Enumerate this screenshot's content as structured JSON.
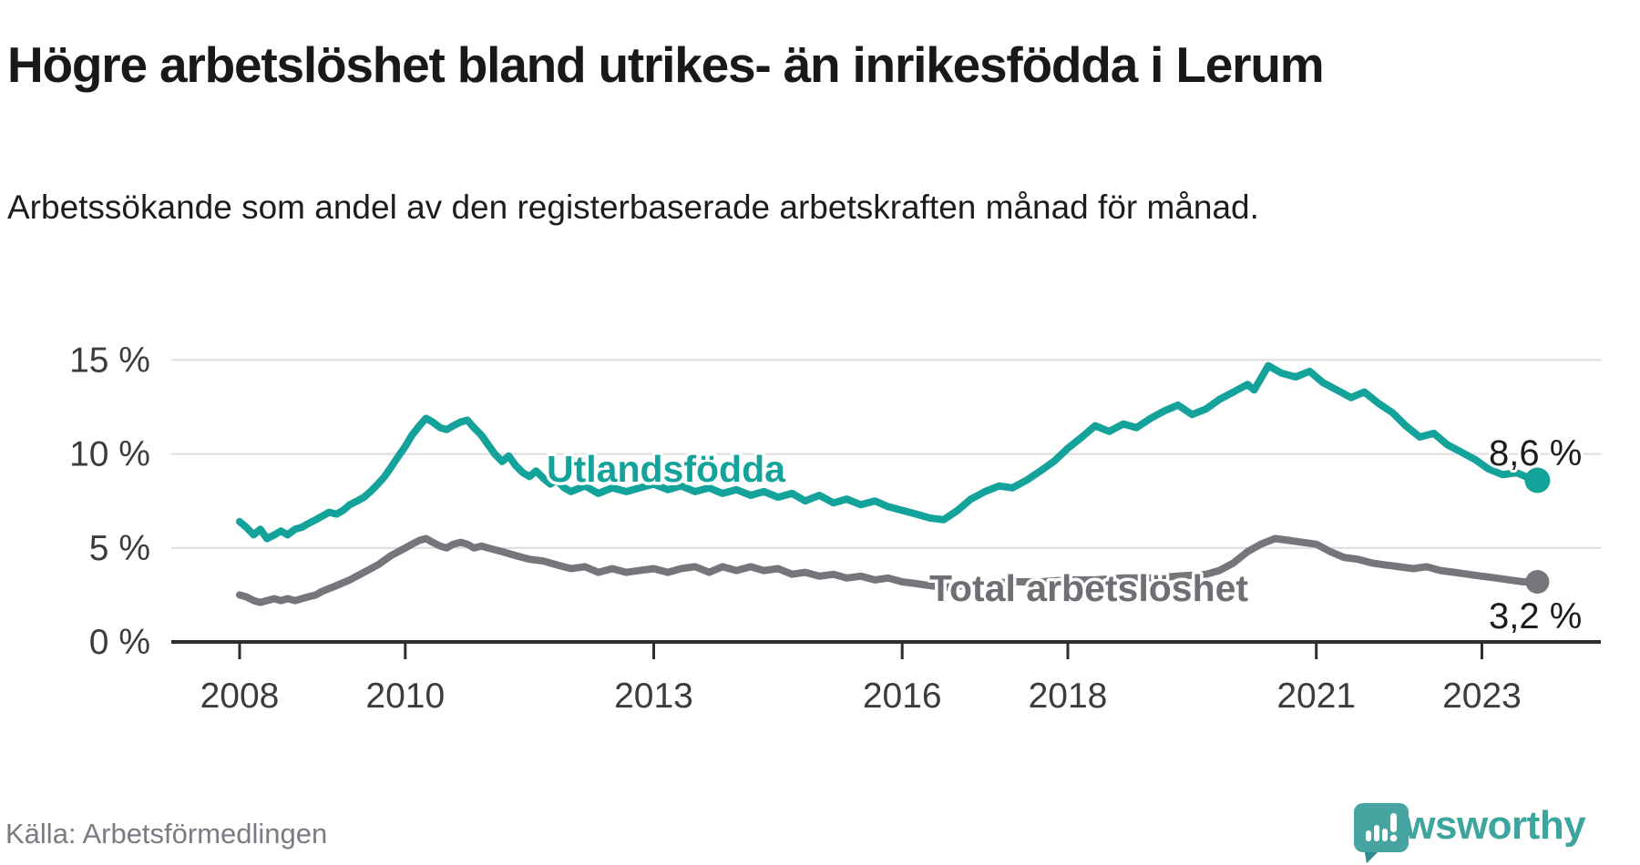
{
  "header": {
    "title": "Högre arbetslöshet bland utrikes- än inrikesfödda i Lerum",
    "subtitle": "Arbetssökande som andel av den registerbaserade arbetskraften månad för månad."
  },
  "footer": {
    "source": "Källa: Arbetsförmedlingen",
    "brand": "Newsworthy",
    "brand_icon": "speech-bubble-bar-chart-exclamation-icon",
    "brand_color": "#3ba59e"
  },
  "chart_data": {
    "type": "line",
    "title": "Högre arbetslöshet bland utrikes- än inrikesfödda i Lerum",
    "subtitle": "Arbetssökande som andel av den registerbaserade arbetskraften månad för månad.",
    "unit": "%",
    "grid": true,
    "x_axis": {
      "ticks": [
        2008,
        2010,
        2013,
        2016,
        2018,
        2021,
        2023
      ],
      "tick_labels": [
        "2008",
        "2010",
        "2013",
        "2016",
        "2018",
        "2021",
        "2023"
      ],
      "range": [
        2007.8,
        2024.45
      ]
    },
    "y_axis": {
      "ticks": [
        0,
        5,
        10,
        15
      ],
      "tick_labels": [
        "0 %",
        "5 %",
        "10 %",
        "15 %"
      ],
      "range": [
        0,
        15.6
      ]
    },
    "series": [
      {
        "name": "Utlandsfödda",
        "color": "#13a39a",
        "end_label": "8,6 %",
        "end_value": 8.6,
        "points": [
          [
            2008.0,
            6.4
          ],
          [
            2008.08,
            6.1
          ],
          [
            2008.17,
            5.7
          ],
          [
            2008.25,
            6.0
          ],
          [
            2008.33,
            5.5
          ],
          [
            2008.42,
            5.7
          ],
          [
            2008.5,
            5.9
          ],
          [
            2008.58,
            5.7
          ],
          [
            2008.67,
            6.0
          ],
          [
            2008.75,
            6.1
          ],
          [
            2008.83,
            6.3
          ],
          [
            2008.92,
            6.5
          ],
          [
            2009.0,
            6.7
          ],
          [
            2009.08,
            6.9
          ],
          [
            2009.17,
            6.8
          ],
          [
            2009.25,
            7.0
          ],
          [
            2009.33,
            7.3
          ],
          [
            2009.42,
            7.5
          ],
          [
            2009.5,
            7.7
          ],
          [
            2009.58,
            8.0
          ],
          [
            2009.67,
            8.4
          ],
          [
            2009.75,
            8.8
          ],
          [
            2009.83,
            9.3
          ],
          [
            2009.92,
            9.9
          ],
          [
            2010.0,
            10.4
          ],
          [
            2010.08,
            11.0
          ],
          [
            2010.17,
            11.5
          ],
          [
            2010.25,
            11.9
          ],
          [
            2010.33,
            11.7
          ],
          [
            2010.42,
            11.4
          ],
          [
            2010.5,
            11.3
          ],
          [
            2010.58,
            11.5
          ],
          [
            2010.67,
            11.7
          ],
          [
            2010.75,
            11.8
          ],
          [
            2010.83,
            11.4
          ],
          [
            2010.92,
            11.0
          ],
          [
            2011.0,
            10.5
          ],
          [
            2011.08,
            10.0
          ],
          [
            2011.17,
            9.6
          ],
          [
            2011.25,
            9.9
          ],
          [
            2011.33,
            9.4
          ],
          [
            2011.42,
            9.0
          ],
          [
            2011.5,
            8.8
          ],
          [
            2011.58,
            9.1
          ],
          [
            2011.67,
            8.7
          ],
          [
            2011.75,
            8.4
          ],
          [
            2011.83,
            8.6
          ],
          [
            2011.92,
            8.2
          ],
          [
            2012.0,
            8.0
          ],
          [
            2012.17,
            8.3
          ],
          [
            2012.33,
            7.9
          ],
          [
            2012.5,
            8.2
          ],
          [
            2012.67,
            8.0
          ],
          [
            2012.83,
            8.2
          ],
          [
            2013.0,
            8.4
          ],
          [
            2013.17,
            8.1
          ],
          [
            2013.33,
            8.3
          ],
          [
            2013.5,
            8.0
          ],
          [
            2013.67,
            8.2
          ],
          [
            2013.83,
            7.9
          ],
          [
            2014.0,
            8.1
          ],
          [
            2014.17,
            7.8
          ],
          [
            2014.33,
            8.0
          ],
          [
            2014.5,
            7.7
          ],
          [
            2014.67,
            7.9
          ],
          [
            2014.83,
            7.5
          ],
          [
            2015.0,
            7.8
          ],
          [
            2015.17,
            7.4
          ],
          [
            2015.33,
            7.6
          ],
          [
            2015.5,
            7.3
          ],
          [
            2015.67,
            7.5
          ],
          [
            2015.83,
            7.2
          ],
          [
            2016.0,
            7.0
          ],
          [
            2016.17,
            6.8
          ],
          [
            2016.33,
            6.6
          ],
          [
            2016.5,
            6.5
          ],
          [
            2016.67,
            7.0
          ],
          [
            2016.83,
            7.6
          ],
          [
            2017.0,
            8.0
          ],
          [
            2017.17,
            8.3
          ],
          [
            2017.33,
            8.2
          ],
          [
            2017.5,
            8.6
          ],
          [
            2017.67,
            9.1
          ],
          [
            2017.83,
            9.6
          ],
          [
            2018.0,
            10.3
          ],
          [
            2018.17,
            10.9
          ],
          [
            2018.33,
            11.5
          ],
          [
            2018.5,
            11.2
          ],
          [
            2018.67,
            11.6
          ],
          [
            2018.83,
            11.4
          ],
          [
            2019.0,
            11.9
          ],
          [
            2019.17,
            12.3
          ],
          [
            2019.33,
            12.6
          ],
          [
            2019.5,
            12.1
          ],
          [
            2019.67,
            12.4
          ],
          [
            2019.83,
            12.9
          ],
          [
            2020.0,
            13.3
          ],
          [
            2020.17,
            13.7
          ],
          [
            2020.25,
            13.4
          ],
          [
            2020.42,
            14.7
          ],
          [
            2020.58,
            14.3
          ],
          [
            2020.75,
            14.1
          ],
          [
            2020.92,
            14.4
          ],
          [
            2021.08,
            13.8
          ],
          [
            2021.25,
            13.4
          ],
          [
            2021.42,
            13.0
          ],
          [
            2021.58,
            13.3
          ],
          [
            2021.75,
            12.7
          ],
          [
            2021.92,
            12.2
          ],
          [
            2022.08,
            11.5
          ],
          [
            2022.25,
            10.9
          ],
          [
            2022.42,
            11.1
          ],
          [
            2022.58,
            10.5
          ],
          [
            2022.75,
            10.1
          ],
          [
            2022.92,
            9.7
          ],
          [
            2023.08,
            9.2
          ],
          [
            2023.25,
            8.9
          ],
          [
            2023.42,
            9.0
          ],
          [
            2023.58,
            8.7
          ],
          [
            2023.67,
            8.6
          ]
        ]
      },
      {
        "name": "Total arbetslöshet",
        "color": "#76757b",
        "end_label": "3,2 %",
        "end_value": 3.2,
        "points": [
          [
            2008.0,
            2.5
          ],
          [
            2008.08,
            2.4
          ],
          [
            2008.17,
            2.2
          ],
          [
            2008.25,
            2.1
          ],
          [
            2008.33,
            2.2
          ],
          [
            2008.42,
            2.3
          ],
          [
            2008.5,
            2.2
          ],
          [
            2008.58,
            2.3
          ],
          [
            2008.67,
            2.2
          ],
          [
            2008.75,
            2.3
          ],
          [
            2008.83,
            2.4
          ],
          [
            2008.92,
            2.5
          ],
          [
            2009.0,
            2.7
          ],
          [
            2009.17,
            3.0
          ],
          [
            2009.33,
            3.3
          ],
          [
            2009.5,
            3.7
          ],
          [
            2009.67,
            4.1
          ],
          [
            2009.83,
            4.6
          ],
          [
            2010.0,
            5.0
          ],
          [
            2010.08,
            5.2
          ],
          [
            2010.17,
            5.4
          ],
          [
            2010.25,
            5.5
          ],
          [
            2010.33,
            5.3
          ],
          [
            2010.42,
            5.1
          ],
          [
            2010.5,
            5.0
          ],
          [
            2010.58,
            5.2
          ],
          [
            2010.67,
            5.3
          ],
          [
            2010.75,
            5.2
          ],
          [
            2010.83,
            5.0
          ],
          [
            2010.92,
            5.1
          ],
          [
            2011.0,
            5.0
          ],
          [
            2011.17,
            4.8
          ],
          [
            2011.33,
            4.6
          ],
          [
            2011.5,
            4.4
          ],
          [
            2011.67,
            4.3
          ],
          [
            2011.83,
            4.1
          ],
          [
            2012.0,
            3.9
          ],
          [
            2012.17,
            4.0
          ],
          [
            2012.33,
            3.7
          ],
          [
            2012.5,
            3.9
          ],
          [
            2012.67,
            3.7
          ],
          [
            2012.83,
            3.8
          ],
          [
            2013.0,
            3.9
          ],
          [
            2013.17,
            3.7
          ],
          [
            2013.33,
            3.9
          ],
          [
            2013.5,
            4.0
          ],
          [
            2013.67,
            3.7
          ],
          [
            2013.83,
            4.0
          ],
          [
            2014.0,
            3.8
          ],
          [
            2014.17,
            4.0
          ],
          [
            2014.33,
            3.8
          ],
          [
            2014.5,
            3.9
          ],
          [
            2014.67,
            3.6
          ],
          [
            2014.83,
            3.7
          ],
          [
            2015.0,
            3.5
          ],
          [
            2015.17,
            3.6
          ],
          [
            2015.33,
            3.4
          ],
          [
            2015.5,
            3.5
          ],
          [
            2015.67,
            3.3
          ],
          [
            2015.83,
            3.4
          ],
          [
            2016.0,
            3.2
          ],
          [
            2016.17,
            3.1
          ],
          [
            2016.33,
            3.0
          ],
          [
            2016.5,
            2.9
          ],
          [
            2016.75,
            3.0
          ],
          [
            2017.0,
            3.1
          ],
          [
            2017.33,
            3.2
          ],
          [
            2017.67,
            3.2
          ],
          [
            2018.0,
            3.3
          ],
          [
            2018.33,
            3.3
          ],
          [
            2018.67,
            3.4
          ],
          [
            2019.0,
            3.4
          ],
          [
            2019.33,
            3.5
          ],
          [
            2019.67,
            3.6
          ],
          [
            2019.83,
            3.8
          ],
          [
            2020.0,
            4.2
          ],
          [
            2020.17,
            4.8
          ],
          [
            2020.33,
            5.2
          ],
          [
            2020.5,
            5.5
          ],
          [
            2020.67,
            5.4
          ],
          [
            2020.83,
            5.3
          ],
          [
            2021.0,
            5.2
          ],
          [
            2021.17,
            4.8
          ],
          [
            2021.33,
            4.5
          ],
          [
            2021.5,
            4.4
          ],
          [
            2021.67,
            4.2
          ],
          [
            2021.83,
            4.1
          ],
          [
            2022.0,
            4.0
          ],
          [
            2022.17,
            3.9
          ],
          [
            2022.33,
            4.0
          ],
          [
            2022.5,
            3.8
          ],
          [
            2022.67,
            3.7
          ],
          [
            2022.83,
            3.6
          ],
          [
            2023.0,
            3.5
          ],
          [
            2023.17,
            3.4
          ],
          [
            2023.33,
            3.3
          ],
          [
            2023.5,
            3.2
          ],
          [
            2023.67,
            3.2
          ]
        ]
      }
    ]
  }
}
